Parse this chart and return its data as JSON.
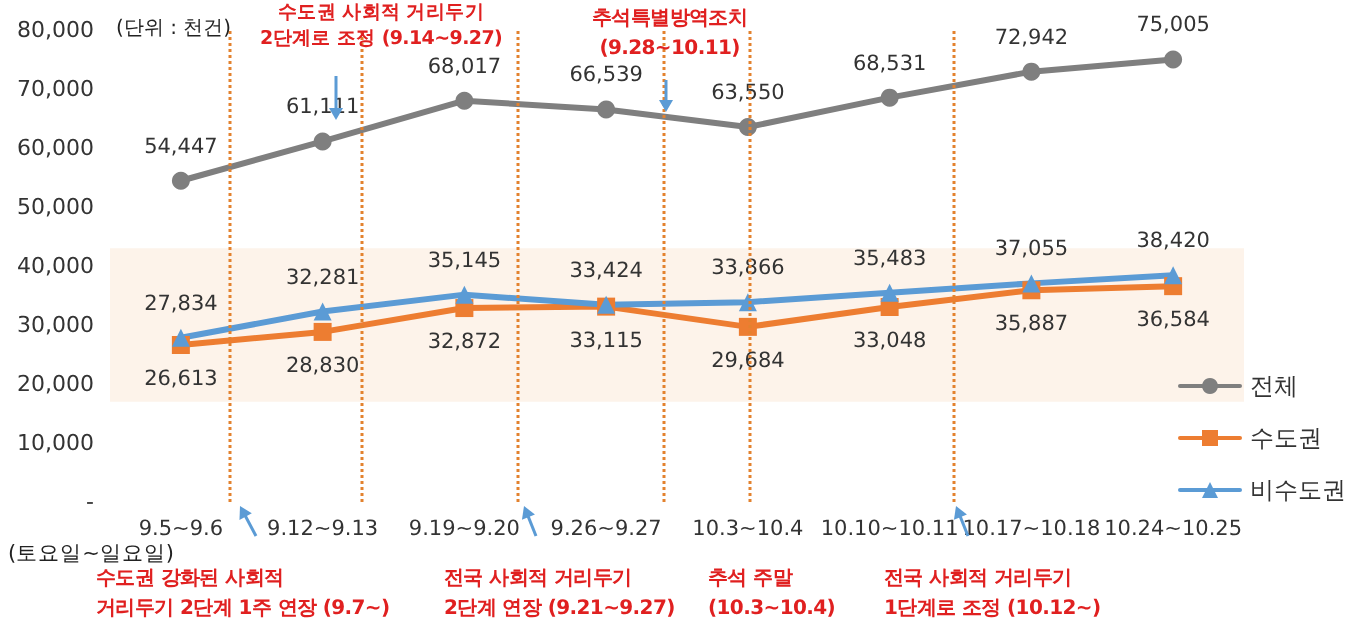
{
  "chart_data": {
    "type": "line",
    "ylabel": "(단위 : 천건)",
    "xlabel": "(토요일~일요일)",
    "categories": [
      "9.5~9.6",
      "9.12~9.13",
      "9.19~9.20",
      "9.26~9.27",
      "10.3~10.4",
      "10.10~10.11",
      "10.17~10.18",
      "10.24~10.25"
    ],
    "series": [
      {
        "name": "전체",
        "color": "#7f7f7f",
        "marker": "circle",
        "values": [
          54447,
          61111,
          68017,
          66539,
          63550,
          68531,
          72942,
          75005
        ],
        "value_labels": [
          "54,447",
          "61,111",
          "68,017",
          "66,539",
          "63,550",
          "68,531",
          "72,942",
          "75,005"
        ]
      },
      {
        "name": "수도권",
        "color": "#ed7d31",
        "marker": "square",
        "values": [
          26613,
          28830,
          32872,
          33115,
          29684,
          33048,
          35887,
          36584
        ],
        "value_labels": [
          "26,613",
          "28,830",
          "32,872",
          "33,115",
          "29,684",
          "33,048",
          "35,887",
          "36,584"
        ]
      },
      {
        "name": "비수도권",
        "color": "#5b9bd5",
        "marker": "triangle",
        "values": [
          27834,
          32281,
          35145,
          33424,
          33866,
          35483,
          37055,
          38420
        ],
        "value_labels": [
          "27,834",
          "32,281",
          "35,145",
          "33,424",
          "33,866",
          "35,483",
          "37,055",
          "38,420"
        ]
      }
    ],
    "ylim": [
      0,
      80000
    ],
    "yticks": [
      {
        "value": 0,
        "label": "-"
      },
      {
        "value": 10000,
        "label": "10,000"
      },
      {
        "value": 20000,
        "label": "20,000"
      },
      {
        "value": 30000,
        "label": "30,000"
      },
      {
        "value": 40000,
        "label": "40,000"
      },
      {
        "value": 50000,
        "label": "50,000"
      },
      {
        "value": 60000,
        "label": "60,000"
      },
      {
        "value": 70000,
        "label": "70,000"
      },
      {
        "value": 80000,
        "label": "80,000"
      }
    ],
    "legend": "bottom right",
    "line_style": "solid",
    "bands": [
      {
        "axis": "y",
        "from": 17000,
        "to": 43000,
        "color": "#fdf3ea"
      }
    ],
    "annotations": [
      "수도권 사회적 거리두기\n2단계로 조정 (9.14~9.27)",
      "추석특별방역조치\n(9.28~10.11)",
      "수도권 강화된 사회적\n거리두기 2단계 1주 연장 (9.7~)",
      "전국 사회적 거리두기\n2단계 연장 (9.21~9.27)",
      "추석 주말\n(10.3~10.4)",
      "전국 사회적 거리두기\n1단계로 조정 (10.12~)"
    ]
  }
}
